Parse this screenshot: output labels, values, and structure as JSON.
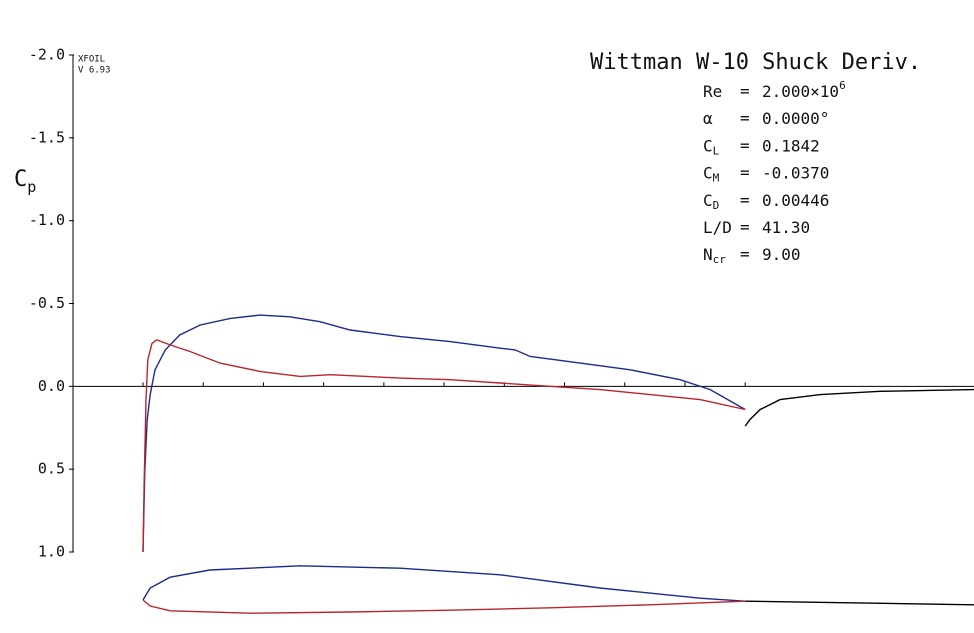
{
  "chart_data": [
    {
      "type": "line",
      "title": "Wittman W-10 Shuck Deriv.",
      "program": "XFOIL",
      "version": "V 6.93",
      "ylabel": {
        "name": "C",
        "sub": "p"
      },
      "info": [
        {
          "name": "Re",
          "eq": "=",
          "value": "2.000×10",
          "sup": "6"
        },
        {
          "name": "α",
          "eq": "=",
          "value": "0.0000°"
        },
        {
          "name": "C",
          "sub": "L",
          "eq": "=",
          "value": "0.1842"
        },
        {
          "name": "C",
          "sub": "M",
          "eq": "=",
          "value": "-0.0370"
        },
        {
          "name": "C",
          "sub": "D",
          "eq": "=",
          "value": "0.00446"
        },
        {
          "name": "L/D",
          "eq": "=",
          "value": "41.30"
        },
        {
          "name": "N",
          "sub": "cr",
          "eq": "=",
          "value": "9.00"
        }
      ],
      "xlim": [
        0,
        1.38
      ],
      "ylim": [
        -2,
        1
      ],
      "y_inverted": true,
      "yticks": [
        {
          "value": -2,
          "label": "-2.0"
        },
        {
          "value": -1.5,
          "label": "-1.5"
        },
        {
          "value": -1,
          "label": "-1.0"
        },
        {
          "value": -0.5,
          "label": "-0.5"
        },
        {
          "value": 0,
          "label": "0.0"
        },
        {
          "value": 0.5,
          "label": "0.5"
        },
        {
          "value": 1,
          "label": "1.0"
        }
      ],
      "xticks": [
        0,
        0.1,
        0.2,
        0.3,
        0.4,
        0.5,
        0.6,
        0.7,
        0.8,
        0.9,
        1
      ],
      "series": [
        {
          "color": "#1c2a8c",
          "x": [
            0,
            0.003,
            0.007,
            0.012,
            0.02,
            0.037,
            0.061,
            0.095,
            0.145,
            0.194,
            0.244,
            0.294,
            0.344,
            0.427,
            0.51,
            0.593,
            0.618,
            0.643,
            0.726,
            0.809,
            0.892,
            0.942,
            1
          ],
          "values": [
            1,
            0.51,
            0.2,
            0.05,
            -0.1,
            -0.22,
            -0.31,
            -0.37,
            -0.41,
            -0.43,
            -0.42,
            -0.39,
            -0.34,
            -0.3,
            -0.27,
            -0.23,
            -0.22,
            -0.18,
            -0.14,
            -0.1,
            -0.04,
            0.02,
            0.14
          ]
        },
        {
          "color": "#b8262a",
          "x": [
            0,
            0.002,
            0.005,
            0.008,
            0.015,
            0.023,
            0.045,
            0.078,
            0.128,
            0.194,
            0.261,
            0.311,
            0.427,
            0.51,
            0.593,
            0.676,
            0.759,
            0.842,
            0.925,
            1
          ],
          "values": [
            1,
            0.57,
            0.08,
            -0.16,
            -0.26,
            -0.28,
            -0.25,
            -0.21,
            -0.14,
            -0.09,
            -0.06,
            -0.07,
            -0.05,
            -0.04,
            -0.02,
            0,
            0.02,
            0.05,
            0.08,
            0.14
          ]
        },
        {
          "color": "#000000",
          "x": [
            1,
            1.008,
            1.025,
            1.058,
            1.125,
            1.224,
            1.38
          ],
          "values": [
            0.24,
            0.2,
            0.14,
            0.08,
            0.05,
            0.03,
            0.02
          ]
        }
      ]
    },
    {
      "type": "line",
      "xlim": [
        0,
        1.38
      ],
      "ylim": [
        -0.05,
        0.1
      ],
      "series": [
        {
          "color": "#1c2a8c",
          "x": [
            0,
            0.012,
            0.045,
            0.111,
            0.261,
            0.427,
            0.593,
            0.759,
            0.925,
            1
          ],
          "values": [
            0,
            0.02,
            0.038,
            0.05,
            0.057,
            0.053,
            0.042,
            0.02,
            0.003,
            -0.002
          ]
        },
        {
          "color": "#b8262a",
          "x": [
            0,
            0.012,
            0.045,
            0.178,
            0.344,
            0.51,
            0.676,
            0.842,
            1
          ],
          "values": [
            0,
            -0.01,
            -0.018,
            -0.022,
            -0.02,
            -0.017,
            -0.013,
            -0.008,
            -0.002
          ]
        },
        {
          "color": "#000000",
          "x": [
            1,
            1.38
          ],
          "values": [
            -0.002,
            -0.008
          ]
        }
      ]
    }
  ]
}
